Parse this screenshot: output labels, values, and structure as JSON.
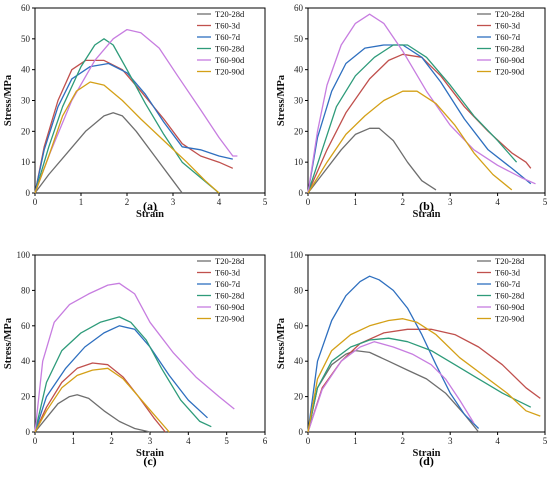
{
  "colors": {
    "T20-28d": "#6e6e6e",
    "T60-3d": "#c0504d",
    "T60-7d": "#2e6fbf",
    "T60-28d": "#2e9b7a",
    "T60-90d": "#c77de0",
    "T20-90d": "#d4a017"
  },
  "chart_data": [
    {
      "panel": "(a)",
      "type": "line",
      "xlabel": "Strain",
      "ylabel": "Stress/MPa",
      "xlim": [
        0,
        5
      ],
      "ylim": [
        0,
        60
      ],
      "xticks": [
        0,
        1,
        2,
        3,
        4,
        5
      ],
      "yticks": [
        0,
        10,
        20,
        30,
        40,
        50,
        60
      ],
      "legend_position": "top-right",
      "series": [
        {
          "name": "T20-28d",
          "x": [
            0,
            0.3,
            0.7,
            1.1,
            1.5,
            1.7,
            1.9,
            2.2,
            2.6,
            3.0,
            3.2
          ],
          "y": [
            0,
            6,
            13,
            20,
            25,
            26,
            25,
            20,
            12,
            4,
            0
          ]
        },
        {
          "name": "T60-3d",
          "x": [
            0,
            0.2,
            0.5,
            0.8,
            1.1,
            1.5,
            1.9,
            2.3,
            2.8,
            3.2,
            3.6,
            4.0,
            4.3
          ],
          "y": [
            0,
            15,
            30,
            40,
            43,
            43,
            40,
            33,
            24,
            16,
            12,
            10,
            8
          ]
        },
        {
          "name": "T60-7d",
          "x": [
            0,
            0.2,
            0.5,
            0.8,
            1.2,
            1.6,
            2.0,
            2.4,
            2.8,
            3.2,
            3.6,
            4.0,
            4.3
          ],
          "y": [
            0,
            14,
            28,
            37,
            41,
            42,
            39,
            32,
            23,
            15,
            14,
            12,
            11
          ]
        },
        {
          "name": "T60-28d",
          "x": [
            0,
            0.3,
            0.6,
            1.0,
            1.3,
            1.5,
            1.7,
            2.0,
            2.4,
            2.8,
            3.2,
            3.6,
            4.0
          ],
          "y": [
            0,
            15,
            28,
            41,
            48,
            50,
            48,
            40,
            29,
            19,
            10,
            5,
            0
          ]
        },
        {
          "name": "T60-90d",
          "x": [
            0,
            0.3,
            0.8,
            1.3,
            1.7,
            2.0,
            2.3,
            2.7,
            3.1,
            3.6,
            4.0,
            4.3,
            4.4
          ],
          "y": [
            0,
            12,
            30,
            43,
            50,
            53,
            52,
            47,
            38,
            27,
            18,
            12,
            12
          ]
        },
        {
          "name": "T20-90d",
          "x": [
            0,
            0.3,
            0.6,
            0.9,
            1.2,
            1.5,
            1.9,
            2.3,
            2.8,
            3.3,
            3.7,
            4.0
          ],
          "y": [
            0,
            12,
            25,
            33,
            36,
            35,
            30,
            24,
            17,
            10,
            4,
            0
          ]
        }
      ]
    },
    {
      "panel": "(b)",
      "type": "line",
      "xlabel": "Strain",
      "ylabel": "Stress/MPa",
      "xlim": [
        0,
        5
      ],
      "ylim": [
        0,
        60
      ],
      "xticks": [
        0,
        1,
        2,
        3,
        4,
        5
      ],
      "yticks": [
        0,
        10,
        20,
        30,
        40,
        50,
        60
      ],
      "legend_position": "top-right",
      "series": [
        {
          "name": "T20-28d",
          "x": [
            0,
            0.3,
            0.7,
            1.0,
            1.3,
            1.5,
            1.8,
            2.1,
            2.4,
            2.7
          ],
          "y": [
            0,
            6,
            14,
            19,
            21,
            21,
            17,
            10,
            4,
            1
          ]
        },
        {
          "name": "T60-3d",
          "x": [
            0,
            0.4,
            0.8,
            1.3,
            1.7,
            2.0,
            2.4,
            2.8,
            3.3,
            3.8,
            4.3,
            4.6,
            4.7
          ],
          "y": [
            0,
            14,
            26,
            37,
            43,
            45,
            44,
            38,
            28,
            20,
            13,
            10,
            8
          ]
        },
        {
          "name": "T60-7d",
          "x": [
            0,
            0.2,
            0.5,
            0.8,
            1.2,
            1.6,
            2.0,
            2.4,
            2.8,
            3.3,
            3.8,
            4.3,
            4.7
          ],
          "y": [
            0,
            18,
            33,
            42,
            47,
            48,
            48,
            44,
            36,
            24,
            14,
            8,
            3
          ]
        },
        {
          "name": "T60-28d",
          "x": [
            0,
            0.3,
            0.6,
            1.0,
            1.4,
            1.8,
            2.1,
            2.5,
            3.0,
            3.5,
            4.0,
            4.4
          ],
          "y": [
            0,
            14,
            28,
            38,
            44,
            48,
            48,
            44,
            35,
            25,
            17,
            10
          ]
        },
        {
          "name": "T60-90d",
          "x": [
            0,
            0.2,
            0.4,
            0.7,
            1.0,
            1.3,
            1.6,
            2.0,
            2.5,
            3.0,
            3.5,
            4.0,
            4.5,
            4.8
          ],
          "y": [
            0,
            20,
            35,
            48,
            55,
            58,
            55,
            46,
            33,
            22,
            14,
            9,
            5,
            3
          ]
        },
        {
          "name": "T20-90d",
          "x": [
            0,
            0.4,
            0.8,
            1.2,
            1.6,
            2.0,
            2.3,
            2.7,
            3.1,
            3.5,
            3.9,
            4.3
          ],
          "y": [
            0,
            10,
            19,
            25,
            30,
            33,
            33,
            29,
            22,
            13,
            6,
            1
          ]
        }
      ]
    },
    {
      "panel": "(c)",
      "type": "line",
      "xlabel": "Strain",
      "ylabel": "Stress/MPa",
      "xlim": [
        0,
        6
      ],
      "ylim": [
        0,
        100
      ],
      "xticks": [
        0,
        1,
        2,
        3,
        4,
        5,
        6
      ],
      "yticks": [
        0,
        20,
        40,
        60,
        80,
        100
      ],
      "legend_position": "top-right",
      "series": [
        {
          "name": "T20-28d",
          "x": [
            0,
            0.3,
            0.6,
            0.9,
            1.1,
            1.4,
            1.8,
            2.2,
            2.6,
            3.0
          ],
          "y": [
            0,
            8,
            16,
            20,
            21,
            19,
            12,
            6,
            2,
            0
          ]
        },
        {
          "name": "T60-3d",
          "x": [
            0,
            0.3,
            0.7,
            1.1,
            1.5,
            1.9,
            2.3,
            2.7,
            3.1,
            3.4
          ],
          "y": [
            0,
            14,
            28,
            36,
            39,
            38,
            31,
            20,
            8,
            0
          ]
        },
        {
          "name": "T60-7d",
          "x": [
            0,
            0.3,
            0.8,
            1.3,
            1.8,
            2.2,
            2.6,
            3.0,
            3.5,
            4.0,
            4.5
          ],
          "y": [
            0,
            20,
            36,
            48,
            56,
            60,
            58,
            48,
            32,
            18,
            8
          ]
        },
        {
          "name": "T60-28d",
          "x": [
            0,
            0.3,
            0.7,
            1.2,
            1.7,
            2.2,
            2.5,
            2.9,
            3.3,
            3.8,
            4.3,
            4.6
          ],
          "y": [
            0,
            28,
            46,
            56,
            62,
            65,
            62,
            52,
            36,
            18,
            6,
            3
          ]
        },
        {
          "name": "T60-90d",
          "x": [
            0,
            0.2,
            0.5,
            0.9,
            1.4,
            1.9,
            2.2,
            2.6,
            3.0,
            3.6,
            4.2,
            4.8,
            5.2
          ],
          "y": [
            0,
            40,
            62,
            72,
            78,
            83,
            84,
            78,
            62,
            45,
            31,
            20,
            13
          ]
        },
        {
          "name": "T20-90d",
          "x": [
            0,
            0.3,
            0.7,
            1.1,
            1.5,
            1.9,
            2.3,
            2.7,
            3.1,
            3.5
          ],
          "y": [
            0,
            12,
            25,
            32,
            35,
            36,
            30,
            20,
            10,
            0
          ]
        }
      ]
    },
    {
      "panel": "(d)",
      "type": "line",
      "xlabel": "Strain",
      "ylabel": "Stress/MPa",
      "xlim": [
        0,
        5
      ],
      "ylim": [
        0,
        100
      ],
      "xticks": [
        0,
        1,
        2,
        3,
        4,
        5
      ],
      "yticks": [
        0,
        20,
        40,
        60,
        80,
        100
      ],
      "legend_position": "top-right",
      "series": [
        {
          "name": "T20-28d",
          "x": [
            0,
            0.2,
            0.5,
            0.8,
            1.0,
            1.3,
            1.7,
            2.1,
            2.5,
            2.9,
            3.3,
            3.6
          ],
          "y": [
            0,
            25,
            38,
            44,
            46,
            45,
            40,
            35,
            30,
            22,
            10,
            0
          ]
        },
        {
          "name": "T60-3d",
          "x": [
            0,
            0.3,
            0.7,
            1.1,
            1.6,
            2.1,
            2.6,
            3.1,
            3.6,
            4.1,
            4.6,
            4.9
          ],
          "y": [
            0,
            25,
            40,
            50,
            56,
            58,
            58,
            55,
            48,
            38,
            25,
            19
          ]
        },
        {
          "name": "T60-7d",
          "x": [
            0,
            0.2,
            0.5,
            0.8,
            1.1,
            1.3,
            1.5,
            1.8,
            2.1,
            2.4,
            2.7,
            3.0,
            3.3,
            3.6
          ],
          "y": [
            0,
            40,
            63,
            77,
            85,
            88,
            86,
            80,
            70,
            55,
            38,
            22,
            10,
            2
          ]
        },
        {
          "name": "T60-28d",
          "x": [
            0,
            0.2,
            0.5,
            0.9,
            1.3,
            1.7,
            2.1,
            2.6,
            3.1,
            3.6,
            4.1,
            4.7
          ],
          "y": [
            0,
            25,
            40,
            48,
            52,
            53,
            51,
            46,
            38,
            30,
            22,
            14
          ]
        },
        {
          "name": "T60-90d",
          "x": [
            0,
            0.3,
            0.7,
            1.1,
            1.4,
            1.8,
            2.2,
            2.6,
            2.9,
            3.2,
            3.5
          ],
          "y": [
            0,
            24,
            40,
            48,
            51,
            48,
            44,
            38,
            30,
            18,
            5
          ]
        },
        {
          "name": "T20-90d",
          "x": [
            0,
            0.2,
            0.5,
            0.9,
            1.3,
            1.7,
            2.0,
            2.3,
            2.7,
            3.2,
            3.7,
            4.2,
            4.6,
            4.9
          ],
          "y": [
            0,
            30,
            46,
            55,
            60,
            63,
            64,
            62,
            55,
            42,
            32,
            22,
            12,
            9
          ]
        }
      ]
    }
  ]
}
